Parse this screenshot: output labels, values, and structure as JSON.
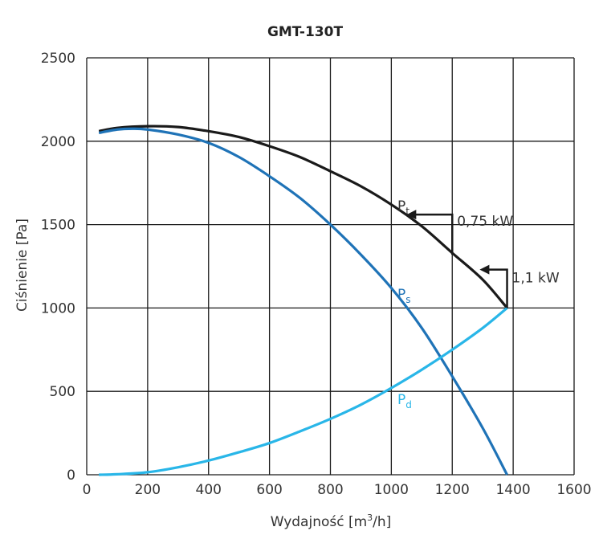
{
  "chart_data": {
    "type": "line",
    "title": "GMT-130T",
    "xlabel": "Wydajność [m³/h]",
    "xlabel_main": "Wydajność [m",
    "xlabel_sup": "3",
    "xlabel_end": "/h]",
    "ylabel": "Ciśnienie [Pa]",
    "xlim": [
      0,
      1600
    ],
    "ylim": [
      0,
      2500
    ],
    "xticks": [
      0,
      200,
      400,
      600,
      800,
      1000,
      1200,
      1400,
      1600
    ],
    "yticks": [
      0,
      500,
      1000,
      1500,
      2000,
      2500
    ],
    "grid": true,
    "series": [
      {
        "name": "Pt",
        "label_main": "P",
        "label_sub": "t",
        "color": "#1a1a1a",
        "x": [
          40,
          100,
          200,
          300,
          400,
          500,
          600,
          700,
          800,
          900,
          1000,
          1100,
          1200,
          1300,
          1380
        ],
        "y": [
          2060,
          2080,
          2090,
          2085,
          2060,
          2025,
          1970,
          1905,
          1820,
          1730,
          1620,
          1490,
          1330,
          1170,
          1000
        ]
      },
      {
        "name": "Ps",
        "label_main": "P",
        "label_sub": "s",
        "color": "#1f73b7",
        "x": [
          40,
          100,
          150,
          200,
          300,
          400,
          500,
          600,
          700,
          800,
          900,
          1000,
          1100,
          1200,
          1300,
          1380
        ],
        "y": [
          2050,
          2070,
          2075,
          2070,
          2040,
          1990,
          1905,
          1790,
          1660,
          1500,
          1320,
          1120,
          880,
          590,
          280,
          0
        ]
      },
      {
        "name": "Pd",
        "label_main": "P",
        "label_sub": "d",
        "color": "#29b6e8",
        "x": [
          40,
          100,
          200,
          300,
          400,
          500,
          600,
          700,
          800,
          900,
          1000,
          1100,
          1200,
          1300,
          1380
        ],
        "y": [
          0,
          3,
          15,
          45,
          85,
          135,
          190,
          260,
          335,
          420,
          520,
          630,
          750,
          880,
          1000
        ]
      }
    ],
    "annotations": [
      {
        "text": "0,75 kW",
        "x": 1200,
        "y_from": 1320,
        "y_to": 1560,
        "arrow_to_x": 1050
      },
      {
        "text": "1,1 kW",
        "x": 1380,
        "y_from": 1000,
        "y_to": 1230,
        "arrow_to_x": 1290
      }
    ]
  }
}
